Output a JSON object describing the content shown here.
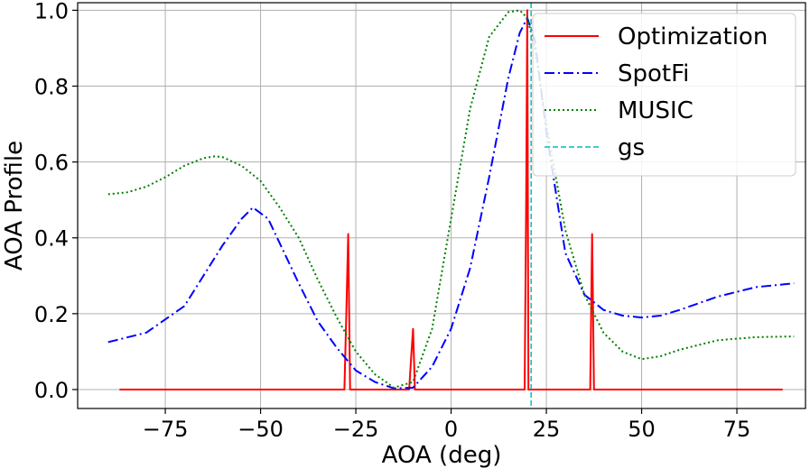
{
  "chart_data": {
    "type": "line",
    "title": "",
    "xlabel": "AOA (deg)",
    "ylabel": "AOA Profile",
    "xlim": [
      -98,
      93
    ],
    "ylim": [
      -0.05,
      1.02
    ],
    "xticks": [
      -75,
      -50,
      -25,
      0,
      25,
      50,
      75
    ],
    "xtick_labels": [
      "−75",
      "−50",
      "−25",
      "0",
      "25",
      "50",
      "75"
    ],
    "yticks": [
      0.0,
      0.2,
      0.4,
      0.6,
      0.8,
      1.0
    ],
    "ytick_labels": [
      "0.0",
      "0.2",
      "0.4",
      "0.6",
      "0.8",
      "1.0"
    ],
    "grid": true,
    "legend_position": "top-right",
    "series": [
      {
        "name": "Optimization",
        "color": "#ff0000",
        "style": "solid",
        "x": [
          -87,
          -28,
          -27.5,
          -27,
          -26.5,
          -11,
          -10.5,
          -10,
          -9.5,
          19.3,
          19.7,
          20,
          20.3,
          36.5,
          37,
          37.5,
          87
        ],
        "y": [
          0,
          0,
          0.2,
          0.41,
          0,
          0,
          0.08,
          0.16,
          0,
          0,
          0.5,
          1.0,
          0,
          0,
          0.41,
          0,
          0
        ]
      },
      {
        "name": "SpotFi",
        "color": "#0000ff",
        "style": "dashdot",
        "x": [
          -90,
          -80,
          -70,
          -60,
          -55,
          -52,
          -48,
          -40,
          -35,
          -30,
          -25,
          -20,
          -15,
          -10,
          -5,
          0,
          5,
          10,
          15,
          18,
          20,
          22,
          25,
          30,
          35,
          40,
          45,
          50,
          55,
          60,
          70,
          80,
          90
        ],
        "y": [
          0.125,
          0.15,
          0.22,
          0.38,
          0.45,
          0.48,
          0.45,
          0.28,
          0.18,
          0.11,
          0.05,
          0.02,
          0.003,
          0.005,
          0.06,
          0.16,
          0.32,
          0.56,
          0.82,
          0.94,
          0.98,
          0.92,
          0.68,
          0.36,
          0.25,
          0.21,
          0.195,
          0.19,
          0.195,
          0.21,
          0.245,
          0.27,
          0.28
        ]
      },
      {
        "name": "MUSIC",
        "color": "#008000",
        "style": "dotted",
        "x": [
          -90,
          -85,
          -80,
          -75,
          -70,
          -65,
          -62,
          -60,
          -55,
          -50,
          -45,
          -40,
          -35,
          -30,
          -25,
          -20,
          -15,
          -10,
          -5,
          0,
          5,
          10,
          15,
          18,
          20,
          22,
          25,
          30,
          35,
          40,
          45,
          50,
          55,
          60,
          70,
          80,
          90
        ],
        "y": [
          0.515,
          0.52,
          0.535,
          0.56,
          0.59,
          0.61,
          0.615,
          0.613,
          0.59,
          0.55,
          0.48,
          0.4,
          0.29,
          0.19,
          0.1,
          0.04,
          0.005,
          0.02,
          0.16,
          0.45,
          0.74,
          0.93,
          0.995,
          1.0,
          0.98,
          0.9,
          0.7,
          0.42,
          0.25,
          0.15,
          0.1,
          0.08,
          0.088,
          0.105,
          0.13,
          0.138,
          0.14
        ]
      },
      {
        "name": "gs",
        "color": "#00bfbf",
        "style": "dashed",
        "vertical_x": 21
      }
    ]
  }
}
